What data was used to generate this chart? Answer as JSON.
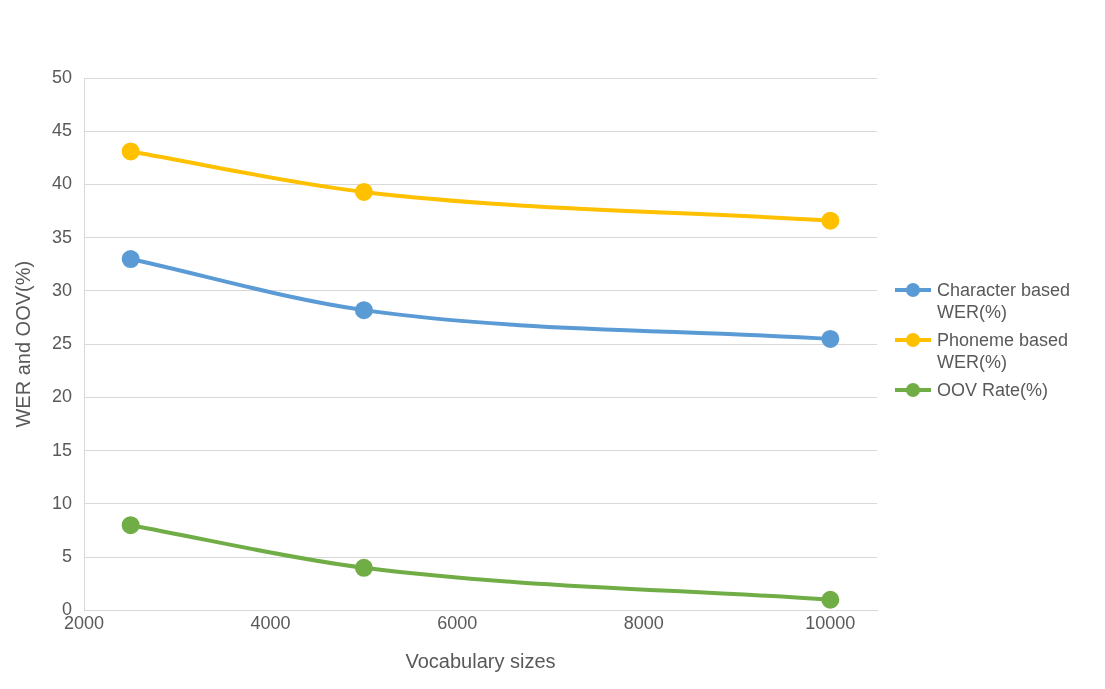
{
  "chart_data": {
    "type": "line",
    "xlabel": "Vocabulary sizes",
    "ylabel": "WER and OOV(%)",
    "x": [
      2500,
      5000,
      10000
    ],
    "series": [
      {
        "name": "Character based WER(%)",
        "color": "#5b9bd5",
        "values": [
          33.0,
          28.2,
          25.5
        ]
      },
      {
        "name": "Phoneme based WER(%)",
        "color": "#ffc000",
        "values": [
          43.1,
          39.3,
          36.6
        ]
      },
      {
        "name": "OOV Rate(%)",
        "color": "#70ad47",
        "values": [
          8.0,
          4.0,
          1.0
        ]
      }
    ],
    "xlim": [
      2000,
      10500
    ],
    "xticks": [
      2000,
      4000,
      6000,
      8000,
      10000
    ],
    "ylim": [
      0,
      50
    ],
    "yticks": [
      0,
      5,
      10,
      15,
      20,
      25,
      30,
      35,
      40,
      45,
      50
    ],
    "grid": "y",
    "legend": "right",
    "marker": "circle",
    "line_style": "solid"
  }
}
